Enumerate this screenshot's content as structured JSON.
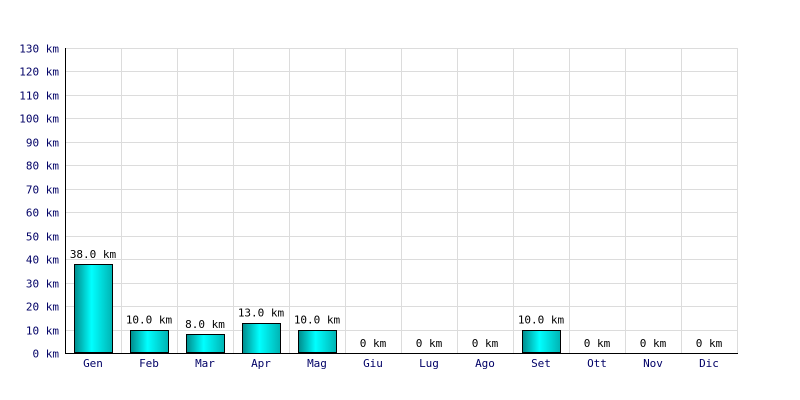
{
  "chart_data": {
    "type": "bar",
    "categories": [
      "Gen",
      "Feb",
      "Mar",
      "Apr",
      "Mag",
      "Giu",
      "Lug",
      "Ago",
      "Set",
      "Ott",
      "Nov",
      "Dic"
    ],
    "values": [
      38.0,
      10.0,
      8.0,
      13.0,
      10.0,
      0,
      0,
      0,
      10.0,
      0,
      0,
      0
    ],
    "data_labels": [
      "38.0 km",
      "10.0 km",
      "8.0 km",
      "13.0 km",
      "10.0 km",
      "0 km",
      "0 km",
      "0 km",
      "10.0 km",
      "0 km",
      "0 km",
      "0 km"
    ],
    "y_ticks": [
      "0 km",
      "10 km",
      "20 km",
      "30 km",
      "40 km",
      "50 km",
      "60 km",
      "70 km",
      "80 km",
      "90 km",
      "100 km",
      "110 km",
      "120 km",
      "130 km"
    ],
    "y_tick_values": [
      0,
      10,
      20,
      30,
      40,
      50,
      60,
      70,
      80,
      90,
      100,
      110,
      120,
      130
    ],
    "ylim": [
      0,
      130
    ],
    "grid": true,
    "bar_color": "#00cccc",
    "bar_gradient": [
      "#008b8b",
      "#00ffff",
      "#00b3b3"
    ]
  }
}
